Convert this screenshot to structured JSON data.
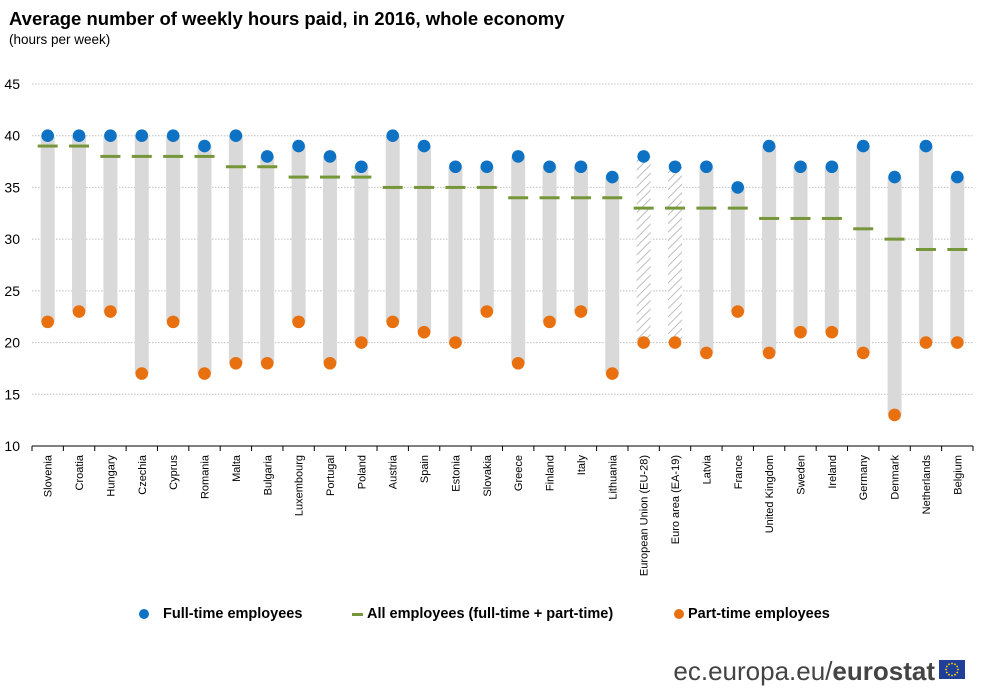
{
  "title": "Average number of weekly hours paid, in 2016, whole economy",
  "subtitle": "(hours per week)",
  "legend": {
    "full_time": "Full-time employees",
    "all": "All employees (full-time + part-time)",
    "part_time": "Part-time employees"
  },
  "source": {
    "domain": "ec.europa.eu/",
    "brand": "eurostat"
  },
  "colors": {
    "full_time": "#0e72c4",
    "all": "#76963a",
    "part_time": "#e8700e",
    "range_bar": "#d9d9d9",
    "grid": "#bfbfbf"
  },
  "chart_data": {
    "type": "dot-range",
    "title": "Average number of weekly hours paid, in 2016, whole economy",
    "subtitle": "(hours per week)",
    "ylim": [
      10,
      45
    ],
    "yticks": [
      10,
      15,
      20,
      25,
      30,
      35,
      40,
      45
    ],
    "grid": true,
    "legend_position": "bottom",
    "categories": [
      "Slovenia",
      "Croatia",
      "Hungary",
      "Czechia",
      "Cyprus",
      "Romania",
      "Malta",
      "Bulgaria",
      "Luxembourg",
      "Portugal",
      "Poland",
      "Austria",
      "Spain",
      "Estonia",
      "Slovakia",
      "Greece",
      "Finland",
      "Italy",
      "Lithuania",
      "European Union (EU-28)",
      "Euro area (EA-19)",
      "Latvia",
      "France",
      "United Kingdom",
      "Sweden",
      "Ireland",
      "Germany",
      "Denmark",
      "Netherlands",
      "Belgium"
    ],
    "aggregate_categories": [
      "European Union (EU-28)",
      "Euro area (EA-19)"
    ],
    "series": [
      {
        "name": "Full-time employees",
        "values": [
          40,
          40,
          40,
          40,
          40,
          39,
          40,
          38,
          39,
          38,
          37,
          40,
          39,
          37,
          37,
          38,
          37,
          37,
          36,
          38,
          37,
          37,
          35,
          39,
          37,
          37,
          39,
          36,
          39,
          36
        ]
      },
      {
        "name": "All employees (full-time + part-time)",
        "values": [
          39,
          39,
          38,
          38,
          38,
          38,
          37,
          37,
          36,
          36,
          36,
          35,
          35,
          35,
          35,
          34,
          34,
          34,
          34,
          33,
          33,
          33,
          33,
          32,
          32,
          32,
          31,
          30,
          29,
          29
        ]
      },
      {
        "name": "Part-time employees",
        "values": [
          22,
          23,
          23,
          17,
          22,
          17,
          18,
          18,
          22,
          18,
          20,
          22,
          21,
          20,
          23,
          18,
          22,
          23,
          17,
          20,
          20,
          19,
          23,
          19,
          21,
          21,
          19,
          13,
          20,
          20
        ]
      }
    ]
  }
}
